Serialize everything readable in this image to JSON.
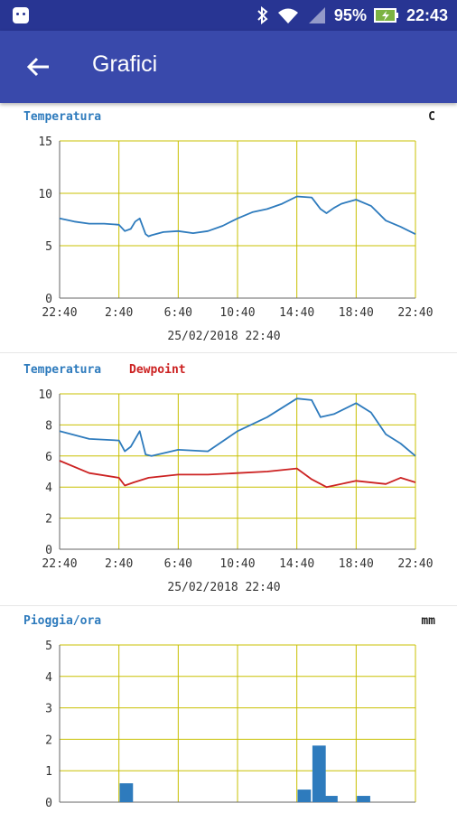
{
  "status": {
    "battery_pct": "95%",
    "time": "22:43"
  },
  "appbar": {
    "title": "Grafici"
  },
  "chart1": {
    "title": "Temperatura",
    "unit": "C",
    "date": "25/02/2018 22:40",
    "colors": {
      "series1": "#2e7bbd",
      "grid": "#c8c000"
    }
  },
  "chart2": {
    "title1": "Temperatura",
    "title2": "Dewpoint",
    "date": "25/02/2018 22:40",
    "colors": {
      "series1": "#2e7bbd",
      "series2": "#cc2222"
    }
  },
  "chart3": {
    "title": "Pioggia/ora",
    "unit": "mm"
  },
  "chart_data": [
    {
      "type": "line",
      "title": "Temperatura",
      "ylabel": "C",
      "ylim": [
        0,
        15
      ],
      "yticks": [
        0,
        5,
        10,
        15
      ],
      "xticks": [
        "22:40",
        "2:40",
        "6:40",
        "10:40",
        "14:40",
        "18:40",
        "22:40"
      ],
      "series": [
        {
          "name": "Temperatura",
          "x": [
            0,
            1,
            2,
            3,
            4,
            4.4,
            4.8,
            5.1,
            5.4,
            5.8,
            6,
            6.2,
            7,
            8,
            9,
            10,
            11,
            12,
            13,
            14,
            15,
            16,
            17,
            17.6,
            18,
            18.5,
            19,
            20,
            21,
            22,
            23,
            24
          ],
          "values": [
            7.6,
            7.3,
            7.1,
            7.1,
            7.0,
            6.4,
            6.6,
            7.3,
            7.6,
            6.1,
            5.9,
            6.0,
            6.3,
            6.4,
            6.2,
            6.4,
            6.9,
            7.6,
            8.2,
            8.5,
            9.0,
            9.7,
            9.6,
            8.5,
            8.1,
            8.6,
            9.0,
            9.4,
            8.8,
            7.4,
            6.8,
            6.1
          ]
        }
      ]
    },
    {
      "type": "line",
      "ylim": [
        0,
        10
      ],
      "yticks": [
        0,
        2,
        4,
        6,
        8,
        10
      ],
      "xticks": [
        "22:40",
        "2:40",
        "6:40",
        "10:40",
        "14:40",
        "18:40",
        "22:40"
      ],
      "series": [
        {
          "name": "Temperatura",
          "x": [
            0,
            2,
            4,
            4.4,
            4.8,
            5.4,
            5.8,
            6.2,
            8,
            10,
            12,
            14,
            16,
            17,
            17.6,
            18.5,
            20,
            21,
            22,
            23,
            24
          ],
          "values": [
            7.6,
            7.1,
            7.0,
            6.3,
            6.6,
            7.6,
            6.1,
            6.0,
            6.4,
            6.3,
            7.6,
            8.5,
            9.7,
            9.6,
            8.5,
            8.7,
            9.4,
            8.8,
            7.4,
            6.8,
            6.0
          ]
        },
        {
          "name": "Dewpoint",
          "x": [
            0,
            2,
            4,
            4.4,
            5,
            6,
            8,
            10,
            12,
            14,
            16,
            17,
            18,
            20,
            22,
            23,
            24
          ],
          "values": [
            5.7,
            4.9,
            4.6,
            4.1,
            4.3,
            4.6,
            4.8,
            4.8,
            4.9,
            5.0,
            5.2,
            4.5,
            4.0,
            4.4,
            4.2,
            4.6,
            4.3
          ]
        }
      ]
    },
    {
      "type": "bar",
      "title": "Pioggia/ora",
      "ylabel": "mm",
      "ylim": [
        0,
        5
      ],
      "yticks": [
        0,
        1,
        2,
        3,
        4,
        5
      ],
      "x": [
        4.5,
        16.5,
        17.5,
        18.3,
        20.5
      ],
      "values": [
        0.6,
        0.4,
        1.8,
        0.2,
        0.2
      ]
    }
  ]
}
